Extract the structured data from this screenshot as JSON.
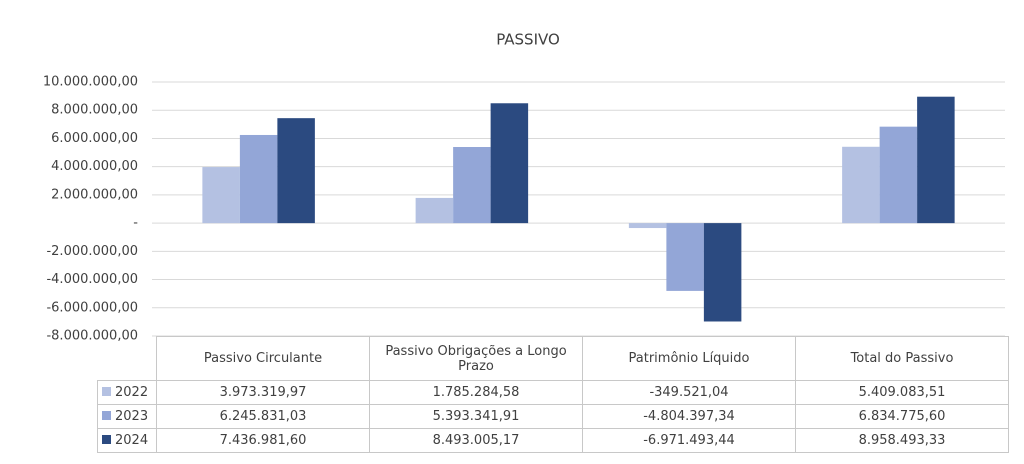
{
  "chart_data": {
    "type": "bar",
    "title": "PASSIVO",
    "categories": [
      "Passivo Circulante",
      "Passivo Obrigações a Longo Prazo",
      "Patrimônio Líquido",
      "Total do Passivo"
    ],
    "series": [
      {
        "name": "2022",
        "color": "#b4c1e2",
        "values": [
          3973319.97,
          1785284.58,
          -349521.04,
          5409083.51
        ],
        "value_labels": [
          "3.973.319,97",
          "1.785.284,58",
          "-349.521,04",
          "5.409.083,51"
        ]
      },
      {
        "name": "2023",
        "color": "#93a6d7",
        "values": [
          6245831.03,
          5393341.91,
          -4804397.34,
          6834775.6
        ],
        "value_labels": [
          "6.245.831,03",
          "5.393.341,91",
          "-4.804.397,34",
          "6.834.775,60"
        ]
      },
      {
        "name": "2024",
        "color": "#2b4a80",
        "values": [
          7436981.6,
          8493005.17,
          -6971493.44,
          8958493.33
        ],
        "value_labels": [
          "7.436.981,60",
          "8.493.005,17",
          "-6.971.493,44",
          "8.958.493,33"
        ]
      }
    ],
    "ylim": [
      -8000000,
      10000000
    ],
    "yticks": [
      {
        "value": -8000000,
        "label": "-8.000.000,00"
      },
      {
        "value": -6000000,
        "label": "-6.000.000,00"
      },
      {
        "value": -4000000,
        "label": "-4.000.000,00"
      },
      {
        "value": -2000000,
        "label": "-2.000.000,00"
      },
      {
        "value": 0,
        "label": "-"
      },
      {
        "value": 2000000,
        "label": "2.000.000,00"
      },
      {
        "value": 4000000,
        "label": "4.000.000,00"
      },
      {
        "value": 6000000,
        "label": "6.000.000,00"
      },
      {
        "value": 8000000,
        "label": "8.000.000,00"
      },
      {
        "value": 10000000,
        "label": "10.000.000,00"
      }
    ],
    "grid": true
  }
}
